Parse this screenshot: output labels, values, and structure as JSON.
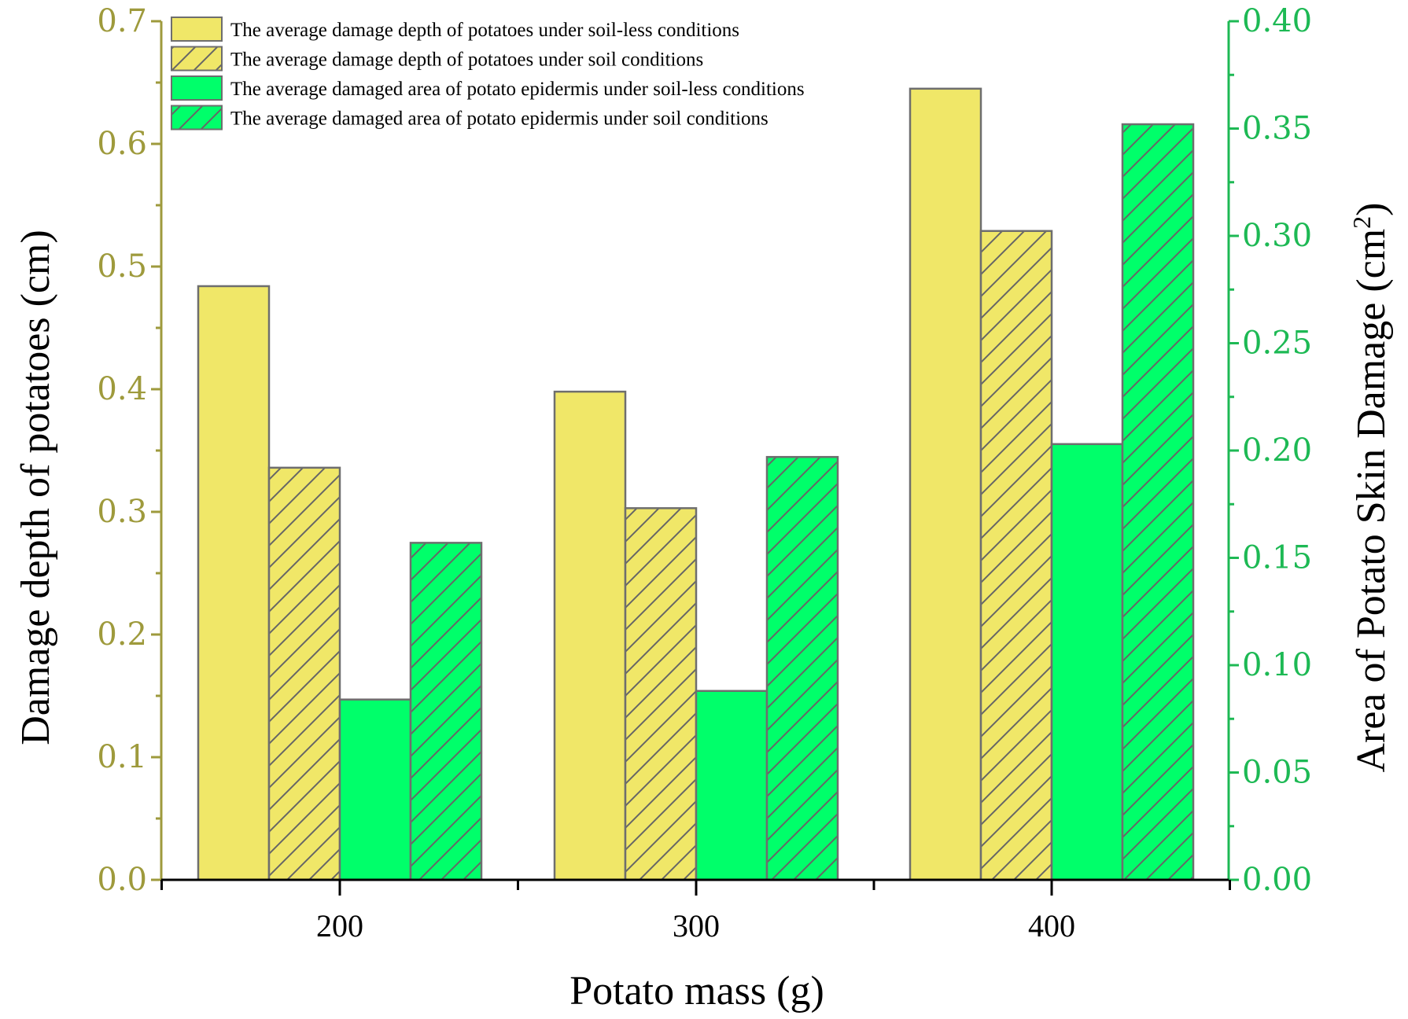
{
  "chart_data": {
    "type": "bar",
    "categories": [
      "200",
      "300",
      "400"
    ],
    "xlabel": "Potato mass (g)",
    "ylabel_left": "Damage depth of potatoes (cm)",
    "ylabel_right_prefix": "Area of Potato Skin Damage (cm",
    "ylabel_right_sup": "2",
    "ylabel_right_suffix": ")",
    "ylim_left": [
      0,
      0.7
    ],
    "ylim_right": [
      0,
      0.4
    ],
    "yticks_left": [
      "0.0",
      "0.1",
      "0.2",
      "0.3",
      "0.4",
      "0.5",
      "0.6",
      "0.7"
    ],
    "yticks_right": [
      "0.00",
      "0.05",
      "0.10",
      "0.15",
      "0.20",
      "0.25",
      "0.30",
      "0.35",
      "0.40"
    ],
    "series": [
      {
        "name": "The average damage depth of potatoes under soil-less conditions",
        "axis": "left",
        "color": "#f0e768",
        "hatch": false,
        "values": [
          0.484,
          0.398,
          0.645
        ]
      },
      {
        "name": "The average damage depth of potatoes under soil conditions",
        "axis": "left",
        "color": "#f0e768",
        "hatch": true,
        "values": [
          0.336,
          0.303,
          0.529
        ]
      },
      {
        "name": "The average damaged area of potato epidermis under soil-less conditions",
        "axis": "right",
        "color": "#00ff6a",
        "hatch": false,
        "values": [
          0.084,
          0.088,
          0.203
        ]
      },
      {
        "name": "The average damaged area of potato epidermis under soil conditions",
        "axis": "right",
        "color": "#00ff6a",
        "hatch": true,
        "values": [
          0.157,
          0.197,
          0.352
        ]
      }
    ],
    "colors": {
      "left_axis": "#9e9a3c",
      "right_axis": "#1db954",
      "bar_edge": "#6e6e6e"
    }
  }
}
